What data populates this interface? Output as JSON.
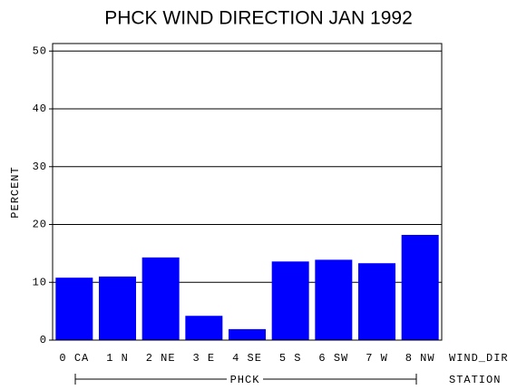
{
  "chart_data": {
    "type": "bar",
    "title": "PHCK WIND DIRECTION JAN 1992",
    "ylabel": "PERCENT",
    "xlabel": "WIND_DIR",
    "group_label": "PHCK",
    "group_axis_label": "STATION",
    "categories": [
      "0 CA",
      "1 N",
      "2 NE",
      "3 E",
      "4 SE",
      "5 S",
      "6 SW",
      "7 W",
      "8 NW"
    ],
    "values": [
      10.8,
      11.0,
      14.3,
      4.2,
      1.9,
      13.6,
      13.9,
      13.3,
      18.2
    ],
    "color": "#0000ff",
    "ylim": [
      0,
      51.3
    ],
    "yticks": [
      0,
      10,
      20,
      30,
      40,
      50
    ],
    "grid": true
  }
}
